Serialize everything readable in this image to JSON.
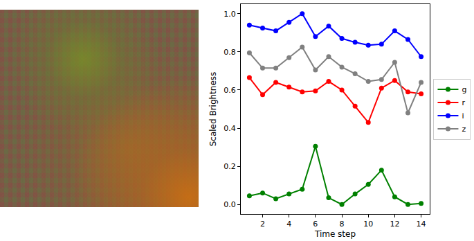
{
  "chart_data": {
    "type": "line",
    "xlabel": "Time step",
    "ylabel": "Scaled Brightness",
    "x": [
      1,
      2,
      3,
      4,
      5,
      6,
      7,
      8,
      9,
      10,
      11,
      12,
      13,
      14
    ],
    "xlim": [
      0.35,
      14.65
    ],
    "xticks": [
      2,
      4,
      6,
      8,
      10,
      12,
      14
    ],
    "ylim": [
      -0.05,
      1.05
    ],
    "yticks": [
      {
        "value": 0,
        "label": "0.0"
      },
      {
        "value": 0.2,
        "label": "0.2"
      },
      {
        "value": 0.4,
        "label": "0.4"
      },
      {
        "value": 0.6,
        "label": "0.6"
      },
      {
        "value": 0.8,
        "label": "0.8"
      },
      {
        "value": 1,
        "label": "1.0"
      }
    ],
    "grid": false,
    "legend": "right",
    "series": [
      {
        "name": "g",
        "color": "green",
        "marker": "circle",
        "values": [
          0.045,
          0.06,
          0.03,
          0.055,
          0.08,
          0.305,
          0.035,
          0.0,
          0.055,
          0.105,
          0.18,
          0.04,
          0.0,
          0.005
        ]
      },
      {
        "name": "r",
        "color": "red",
        "marker": "circle",
        "values": [
          0.665,
          0.575,
          0.64,
          0.615,
          0.59,
          0.595,
          0.645,
          0.6,
          0.515,
          0.43,
          0.61,
          0.65,
          0.59,
          0.58
        ]
      },
      {
        "name": "i",
        "color": "blue",
        "marker": "circle",
        "values": [
          0.94,
          0.925,
          0.91,
          0.955,
          1.0,
          0.88,
          0.935,
          0.87,
          0.85,
          0.835,
          0.84,
          0.91,
          0.865,
          0.775
        ]
      },
      {
        "name": "z",
        "color": "gray",
        "marker": "circle",
        "values": [
          0.795,
          0.715,
          0.715,
          0.77,
          0.825,
          0.705,
          0.775,
          0.72,
          0.685,
          0.645,
          0.655,
          0.745,
          0.48,
          0.64
        ]
      }
    ]
  }
}
